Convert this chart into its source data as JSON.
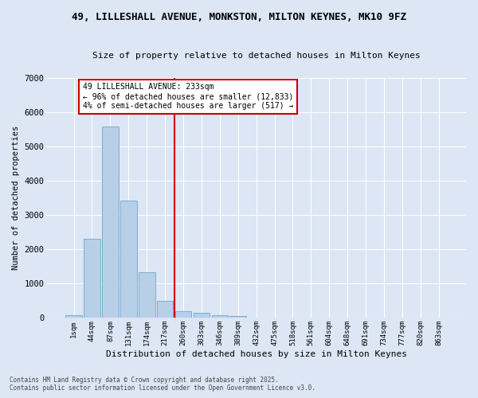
{
  "title_line1": "49, LILLESHALL AVENUE, MONKSTON, MILTON KEYNES, MK10 9FZ",
  "title_line2": "Size of property relative to detached houses in Milton Keynes",
  "xlabel": "Distribution of detached houses by size in Milton Keynes",
  "ylabel": "Number of detached properties",
  "bar_labels": [
    "1sqm",
    "44sqm",
    "87sqm",
    "131sqm",
    "174sqm",
    "217sqm",
    "260sqm",
    "303sqm",
    "346sqm",
    "389sqm",
    "432sqm",
    "475sqm",
    "518sqm",
    "561sqm",
    "604sqm",
    "648sqm",
    "691sqm",
    "734sqm",
    "777sqm",
    "820sqm",
    "863sqm"
  ],
  "bar_values": [
    75,
    2310,
    5580,
    3430,
    1330,
    500,
    195,
    145,
    75,
    45,
    10,
    5,
    3,
    2,
    1,
    1,
    0,
    0,
    0,
    0,
    0
  ],
  "bar_color": "#b8cfe8",
  "bar_edgecolor": "#7aafd4",
  "background_color": "#dce6f5",
  "grid_color": "#ffffff",
  "vline_x": 5.5,
  "vline_color": "#cc0000",
  "annotation_text": "49 LILLESHALL AVENUE: 233sqm\n← 96% of detached houses are smaller (12,833)\n4% of semi-detached houses are larger (517) →",
  "annotation_box_color": "#cc0000",
  "annotation_fill": "#ffffff",
  "ylim": [
    0,
    7000
  ],
  "yticks": [
    0,
    1000,
    2000,
    3000,
    4000,
    5000,
    6000,
    7000
  ],
  "footnote1": "Contains HM Land Registry data © Crown copyright and database right 2025.",
  "footnote2": "Contains public sector information licensed under the Open Government Licence v3.0."
}
